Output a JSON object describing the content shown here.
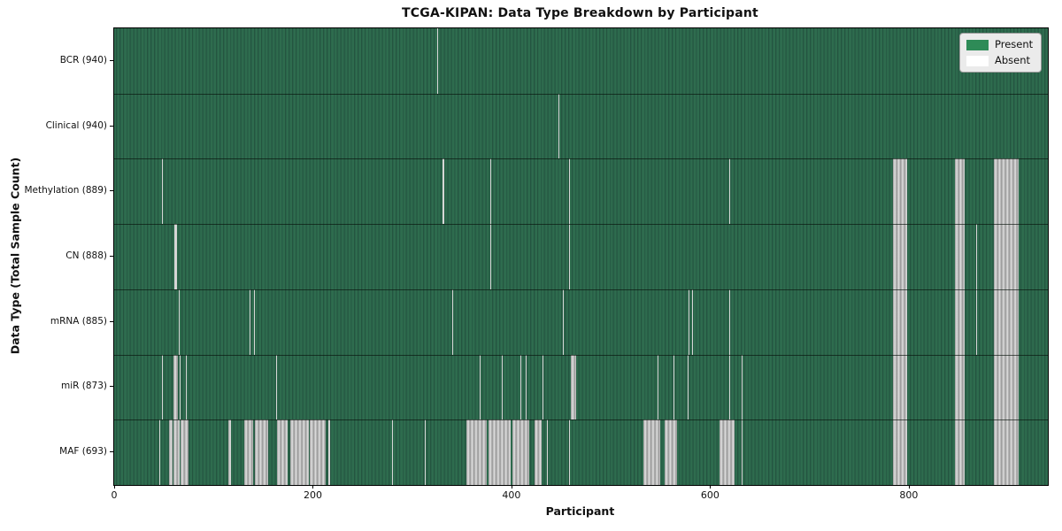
{
  "chart_data": {
    "type": "heatmap",
    "title": "TCGA-KIPAN: Data Type Breakdown by Participant",
    "xlabel": "Participant",
    "ylabel": "Data Type (Total Sample Count)",
    "x_range": [
      0,
      940
    ],
    "x_ticks": [
      0,
      200,
      400,
      600,
      800
    ],
    "grid": false,
    "legend_position": "upper right",
    "legend": [
      {
        "label": "Present",
        "color": "#2e8b57"
      },
      {
        "label": "Absent",
        "color": "#ffffff"
      }
    ],
    "cell_values": {
      "present": 1,
      "absent": 0
    },
    "rows": [
      {
        "label": "BCR (940)",
        "data_type": "BCR",
        "sample_count": 940,
        "absent_participant_ranges": [
          [
            325,
            326
          ]
        ]
      },
      {
        "label": "Clinical (940)",
        "data_type": "Clinical",
        "sample_count": 940,
        "absent_participant_ranges": [
          [
            447,
            448
          ]
        ]
      },
      {
        "label": "Methylation (889)",
        "data_type": "Methylation",
        "sample_count": 889,
        "absent_participant_ranges": [
          [
            48,
            49
          ],
          [
            331,
            332
          ],
          [
            379,
            380
          ],
          [
            458,
            459
          ],
          [
            619,
            620
          ],
          [
            784,
            798
          ],
          [
            846,
            856
          ],
          [
            886,
            911
          ]
        ]
      },
      {
        "label": "CN (888)",
        "data_type": "CN",
        "sample_count": 888,
        "absent_participant_ranges": [
          [
            61,
            63
          ],
          [
            379,
            380
          ],
          [
            458,
            459
          ],
          [
            784,
            798
          ],
          [
            846,
            856
          ],
          [
            868,
            869
          ],
          [
            886,
            911
          ]
        ]
      },
      {
        "label": "mRNA (885)",
        "data_type": "mRNA",
        "sample_count": 885,
        "absent_participant_ranges": [
          [
            65,
            66
          ],
          [
            136,
            137
          ],
          [
            141,
            142
          ],
          [
            340,
            341
          ],
          [
            452,
            453
          ],
          [
            578,
            579
          ],
          [
            582,
            583
          ],
          [
            619,
            620
          ],
          [
            784,
            798
          ],
          [
            846,
            856
          ],
          [
            868,
            869
          ],
          [
            886,
            911
          ]
        ]
      },
      {
        "label": "miR (873)",
        "data_type": "miR",
        "sample_count": 873,
        "absent_participant_ranges": [
          [
            48,
            49
          ],
          [
            60,
            64
          ],
          [
            66,
            67
          ],
          [
            72,
            73
          ],
          [
            163,
            164
          ],
          [
            368,
            369
          ],
          [
            390,
            391
          ],
          [
            409,
            410
          ],
          [
            414,
            415
          ],
          [
            431,
            432
          ],
          [
            460,
            465
          ],
          [
            547,
            548
          ],
          [
            563,
            564
          ],
          [
            577,
            578
          ],
          [
            619,
            620
          ],
          [
            632,
            633
          ],
          [
            784,
            798
          ],
          [
            846,
            856
          ],
          [
            886,
            911
          ]
        ]
      },
      {
        "label": "MAF (693)",
        "data_type": "MAF",
        "sample_count": 693,
        "absent_participant_ranges": [
          [
            45,
            46
          ],
          [
            55,
            59
          ],
          [
            60,
            66
          ],
          [
            67,
            75
          ],
          [
            115,
            118
          ],
          [
            131,
            140
          ],
          [
            142,
            155
          ],
          [
            164,
            175
          ],
          [
            177,
            196
          ],
          [
            197,
            213
          ],
          [
            216,
            217
          ],
          [
            280,
            281
          ],
          [
            313,
            314
          ],
          [
            355,
            375
          ],
          [
            377,
            399
          ],
          [
            401,
            418
          ],
          [
            423,
            430
          ],
          [
            436,
            437
          ],
          [
            458,
            459
          ],
          [
            533,
            550
          ],
          [
            554,
            567
          ],
          [
            609,
            625
          ],
          [
            632,
            633
          ],
          [
            784,
            798
          ],
          [
            846,
            856
          ],
          [
            886,
            911
          ]
        ]
      }
    ]
  }
}
